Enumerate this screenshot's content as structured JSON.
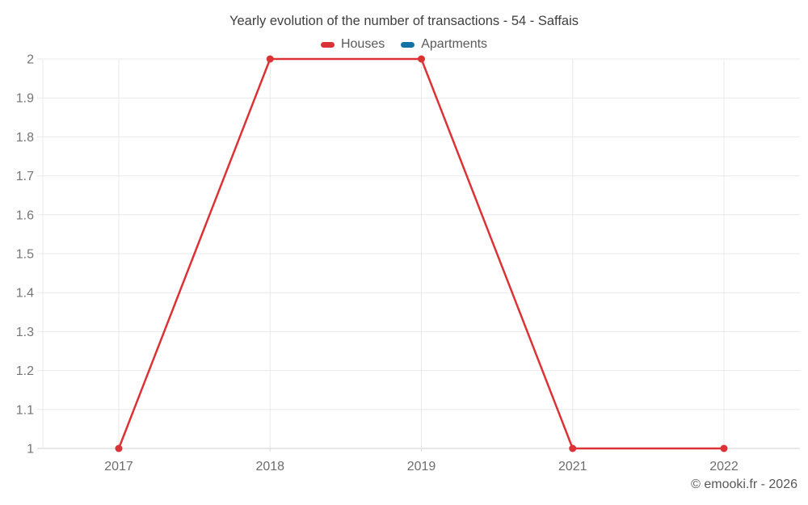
{
  "header": {
    "title": "Yearly evolution of the number of transactions - 54 - Saffais"
  },
  "legend": {
    "items": [
      {
        "label": "Houses",
        "color": "#db3236"
      },
      {
        "label": "Apartments",
        "color": "#1273a5"
      }
    ]
  },
  "footer": {
    "credit": "© emooki.fr - 2026"
  },
  "chart_data": {
    "type": "line",
    "title": "Yearly evolution of the number of transactions - 54 - Saffais",
    "xlabel": "",
    "ylabel": "",
    "categories": [
      "2017",
      "2018",
      "2019",
      "2021",
      "2022"
    ],
    "series": [
      {
        "name": "Houses",
        "color": "#db3236",
        "values": [
          1,
          2,
          2,
          1,
          1
        ]
      },
      {
        "name": "Apartments",
        "color": "#1273a5",
        "values": []
      }
    ],
    "ylim": [
      1,
      2
    ],
    "ytick_step": 0.1,
    "ytick_labels": [
      "1",
      "1.1",
      "1.2",
      "1.3",
      "1.4",
      "1.5",
      "1.6",
      "1.7",
      "1.8",
      "1.9",
      "2"
    ],
    "grid": true,
    "legend_position": "top",
    "marker": "circle"
  }
}
